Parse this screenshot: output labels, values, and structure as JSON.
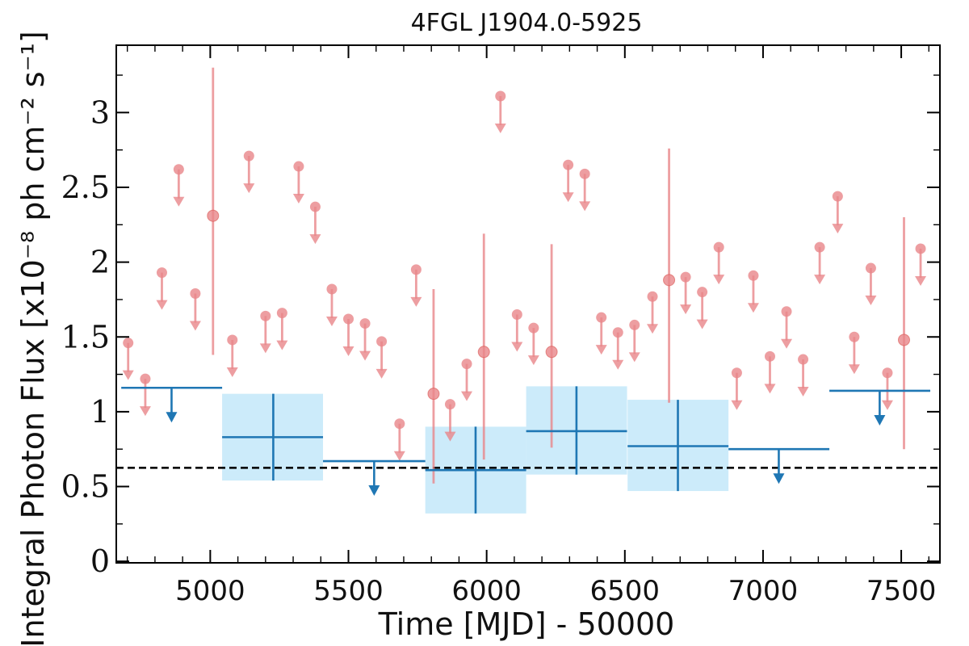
{
  "chart_data": {
    "type": "scatter",
    "title": "4FGL J1904.0-5925",
    "xlabel": "Time [MJD] - 50000",
    "ylabel": "Integral Photon Flux [x10⁻⁸ ph cm⁻² s⁻¹]",
    "xlim": [
      4660,
      7640
    ],
    "ylim": [
      -0.01,
      3.45
    ],
    "xticks": [
      5000,
      5500,
      6000,
      6500,
      7000,
      7500
    ],
    "xtick_labels": [
      "5000",
      "5500",
      "6000",
      "6500",
      "7000",
      "7500"
    ],
    "yticks": [
      0,
      0.5,
      1,
      1.5,
      2,
      2.5,
      3
    ],
    "ytick_labels": [
      "0",
      "0.5",
      "1",
      "1.5",
      "2",
      "2.5",
      "3"
    ],
    "reference_line": {
      "y": 0.625,
      "style": "dashed",
      "color": "#000000"
    },
    "series": [
      {
        "kind": "fine_bins_upper_limits",
        "color": "#e8868a",
        "points": [
          [
            4703,
            1.46
          ],
          [
            4765,
            1.22
          ],
          [
            4825,
            1.93
          ],
          [
            4886,
            2.62
          ],
          [
            4946,
            1.79
          ],
          [
            5080,
            1.48
          ],
          [
            5140,
            2.71
          ],
          [
            5200,
            1.64
          ],
          [
            5260,
            1.66
          ],
          [
            5320,
            2.64
          ],
          [
            5380,
            2.37
          ],
          [
            5440,
            1.82
          ],
          [
            5500,
            1.62
          ],
          [
            5560,
            1.59
          ],
          [
            5620,
            1.47
          ],
          [
            5685,
            0.92
          ],
          [
            5745,
            1.95
          ],
          [
            5868,
            1.05
          ],
          [
            5928,
            1.32
          ],
          [
            6050,
            3.11
          ],
          [
            6110,
            1.65
          ],
          [
            6170,
            1.56
          ],
          [
            6295,
            2.65
          ],
          [
            6355,
            2.59
          ],
          [
            6415,
            1.63
          ],
          [
            6475,
            1.53
          ],
          [
            6535,
            1.58
          ],
          [
            6600,
            1.77
          ],
          [
            6720,
            1.9
          ],
          [
            6780,
            1.8
          ],
          [
            6840,
            2.1
          ],
          [
            6905,
            1.26
          ],
          [
            6965,
            1.91
          ],
          [
            7025,
            1.37
          ],
          [
            7085,
            1.67
          ],
          [
            7145,
            1.35
          ],
          [
            7205,
            2.1
          ],
          [
            7270,
            2.44
          ],
          [
            7330,
            1.5
          ],
          [
            7390,
            1.96
          ],
          [
            7450,
            1.26
          ],
          [
            7570,
            2.09
          ]
        ]
      },
      {
        "kind": "fine_bins_detections",
        "color": "#e8868a",
        "points": [
          {
            "x": 5010,
            "y": 2.31,
            "ylow": 1.38,
            "yhigh": 3.3
          },
          {
            "x": 5808,
            "y": 1.12,
            "ylow": 0.52,
            "yhigh": 1.82
          },
          {
            "x": 5990,
            "y": 1.4,
            "ylow": 0.68,
            "yhigh": 2.19
          },
          {
            "x": 6235,
            "y": 1.4,
            "ylow": 0.76,
            "yhigh": 2.12
          },
          {
            "x": 6660,
            "y": 1.88,
            "ylow": 1.06,
            "yhigh": 2.76
          },
          {
            "x": 7510,
            "y": 1.48,
            "ylow": 0.75,
            "yhigh": 2.3
          }
        ]
      },
      {
        "kind": "coarse_bins_detections",
        "color": "#1f77b4",
        "band_color": "#ccebfa",
        "bins": [
          {
            "x0": 5043,
            "x1": 5408,
            "xc": 5228,
            "y": 0.83,
            "ylow": 0.54,
            "yhigh": 1.12
          },
          {
            "x0": 5778,
            "x1": 6143,
            "xc": 5960,
            "y": 0.61,
            "ylow": 0.32,
            "yhigh": 0.9
          },
          {
            "x0": 6143,
            "x1": 6508,
            "xc": 6325,
            "y": 0.87,
            "ylow": 0.58,
            "yhigh": 1.17
          },
          {
            "x0": 6510,
            "x1": 6875,
            "xc": 6692,
            "y": 0.77,
            "ylow": 0.47,
            "yhigh": 1.08
          }
        ]
      },
      {
        "kind": "coarse_bins_upper_limits",
        "color": "#1f77b4",
        "bins": [
          {
            "x0": 4678,
            "x1": 5043,
            "xc": 4860,
            "y": 1.16
          },
          {
            "x0": 5408,
            "x1": 5778,
            "xc": 5593,
            "y": 0.67
          },
          {
            "x0": 6875,
            "x1": 7240,
            "xc": 7057,
            "y": 0.75
          },
          {
            "x0": 7240,
            "x1": 7605,
            "xc": 7422,
            "y": 1.14
          }
        ]
      }
    ]
  }
}
